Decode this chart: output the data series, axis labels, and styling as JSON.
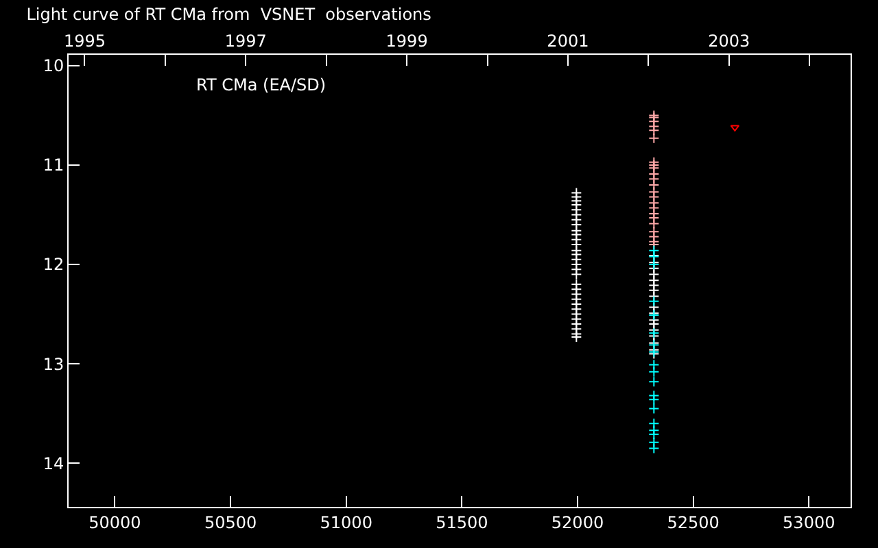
{
  "chart_data": {
    "type": "scatter",
    "title": "Light curve of RT CMa from  VSNET  observations",
    "annotations": [
      "RT CMa (EA/SD)"
    ],
    "series": [
      {
        "color": "#ffffff",
        "marker": "cross",
        "x": [
          51995,
          51995,
          51995,
          51995,
          51995,
          51995,
          51995,
          51995,
          51995,
          51995,
          51995,
          51995,
          51995,
          51995,
          51995,
          51995,
          51995,
          51995,
          51995,
          51995,
          51995,
          51995,
          51995,
          51995,
          51995,
          51995,
          51995,
          51995,
          51995,
          51995
        ],
        "values": [
          11.28,
          11.32,
          11.36,
          11.4,
          11.45,
          11.5,
          11.55,
          11.6,
          11.66,
          11.7,
          11.75,
          11.8,
          11.86,
          11.9,
          11.95,
          12.0,
          12.05,
          12.1,
          12.2,
          12.25,
          12.3,
          12.35,
          12.4,
          12.45,
          12.5,
          12.55,
          12.6,
          12.65,
          12.7,
          12.73
        ]
      },
      {
        "color": "#ffffff",
        "marker": "cross",
        "x": [
          52330,
          52330,
          52330,
          52330,
          52330,
          52330,
          52330,
          52330,
          52330,
          52330,
          52330,
          52330,
          52330,
          52330,
          52330,
          52330,
          52330
        ],
        "values": [
          11.91,
          11.98,
          12.04,
          12.1,
          12.16,
          12.21,
          12.26,
          12.32,
          12.43,
          12.49,
          12.56,
          12.6,
          12.66,
          12.72,
          12.79,
          12.86,
          12.9
        ]
      },
      {
        "color": "#ffaaaa",
        "marker": "cross",
        "x": [
          52330,
          52330,
          52330,
          52330,
          52330,
          52330,
          52330,
          52330,
          52330,
          52330,
          52330,
          52330,
          52330,
          52330,
          52330,
          52330,
          52330,
          52330,
          52330,
          52330,
          52330,
          52330,
          52330
        ],
        "values": [
          10.5,
          10.52,
          10.56,
          10.61,
          10.65,
          10.73,
          10.97,
          11.0,
          11.03,
          11.09,
          11.14,
          11.2,
          11.27,
          11.32,
          11.38,
          11.43,
          11.49,
          11.53,
          11.59,
          11.67,
          11.72,
          11.77,
          11.8
        ]
      },
      {
        "color": "#00ffff",
        "marker": "cross",
        "x": [
          52330,
          52330,
          52330,
          52330,
          52330,
          52330,
          52330,
          52330,
          52330,
          52330,
          52330,
          52330,
          52330,
          52330,
          52330,
          52330,
          52330,
          52330,
          52330
        ],
        "values": [
          11.86,
          11.92,
          12.0,
          12.37,
          12.51,
          12.69,
          12.81,
          12.88,
          13.01,
          13.08,
          13.18,
          13.32,
          13.36,
          13.45,
          13.6,
          13.67,
          13.71,
          13.79,
          13.85
        ]
      },
      {
        "color": "#ff0000",
        "marker": "triangle-down",
        "x": [
          52680
        ],
        "values": [
          10.62
        ]
      }
    ],
    "xlim": [
      49800,
      53180
    ],
    "xticks": [
      50000,
      50500,
      51000,
      51500,
      52000,
      52500,
      53000
    ],
    "ylim": [
      14.44,
      9.89
    ],
    "yticks": [
      10,
      11,
      12,
      13,
      14
    ],
    "x2lim": [
      1994.8,
      2004.51
    ],
    "x2ticks": [
      1995,
      {
        "value": 1996,
        "label": null
      },
      1997,
      {
        "value": 1998,
        "label": null
      },
      1999,
      {
        "value": 2000,
        "label": null
      },
      2001,
      {
        "value": 2002,
        "label": null
      },
      2003,
      {
        "value": 2004,
        "label": null
      }
    ],
    "grid": false
  }
}
